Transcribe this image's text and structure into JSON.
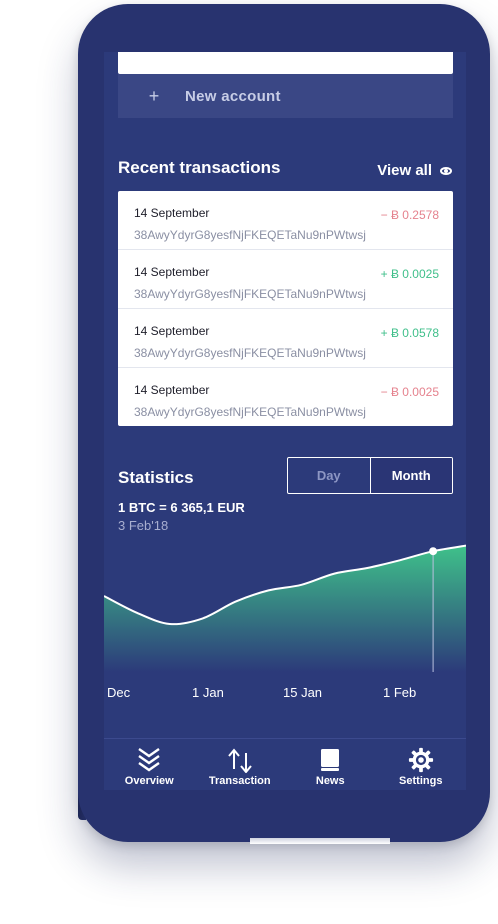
{
  "accounts": {
    "new_account_icon": "+",
    "new_account_label": "New account"
  },
  "recent": {
    "title": "Recent transactions",
    "view_all": "View all",
    "transactions": [
      {
        "date": "14 September",
        "address": "38AwyYdyrG8yesfNjFKEQETaNu9nPWtwsj",
        "amount": "− Ƀ 0.2578",
        "direction": "out"
      },
      {
        "date": "14 September",
        "address": "38AwyYdyrG8yesfNjFKEQETaNu9nPWtwsj",
        "amount": "+ Ƀ 0.0025",
        "direction": "in"
      },
      {
        "date": "14 September",
        "address": "38AwyYdyrG8yesfNjFKEQETaNu9nPWtwsj",
        "amount": "+ Ƀ 0.0578",
        "direction": "in"
      },
      {
        "date": "14 September",
        "address": "38AwyYdyrG8yesfNjFKEQETaNu9nPWtwsj",
        "amount": "− Ƀ 0.0025",
        "direction": "out"
      }
    ]
  },
  "statistics": {
    "title": "Statistics",
    "toggle": {
      "day": "Day",
      "month": "Month",
      "selected": "Month"
    },
    "rate": "1 BTC = 6 365,1 EUR",
    "rate_date": "3 Feb'18"
  },
  "chart_data": {
    "type": "area",
    "x_ticks": [
      "Dec",
      "1 Jan",
      "15 Jan",
      "1 Feb"
    ],
    "values": [
      0.5,
      0.35,
      0.25,
      0.3,
      0.45,
      0.55,
      0.6,
      0.7,
      0.75,
      0.82,
      0.9,
      0.95
    ],
    "highlight_index": 10,
    "colors": {
      "line": "#ffffff",
      "fill_top": "#3fc18a",
      "fill_bottom": "#2c3a7a"
    }
  },
  "nav": {
    "items": [
      {
        "label": "Overview",
        "icon": "chevrons-down-icon"
      },
      {
        "label": "Transaction",
        "icon": "arrows-up-down-icon"
      },
      {
        "label": "News",
        "icon": "book-icon"
      },
      {
        "label": "Settings",
        "icon": "gear-icon"
      }
    ]
  },
  "colors": {
    "background": "#28336f",
    "positive": "#3fbf8a",
    "negative": "#e5828e"
  }
}
